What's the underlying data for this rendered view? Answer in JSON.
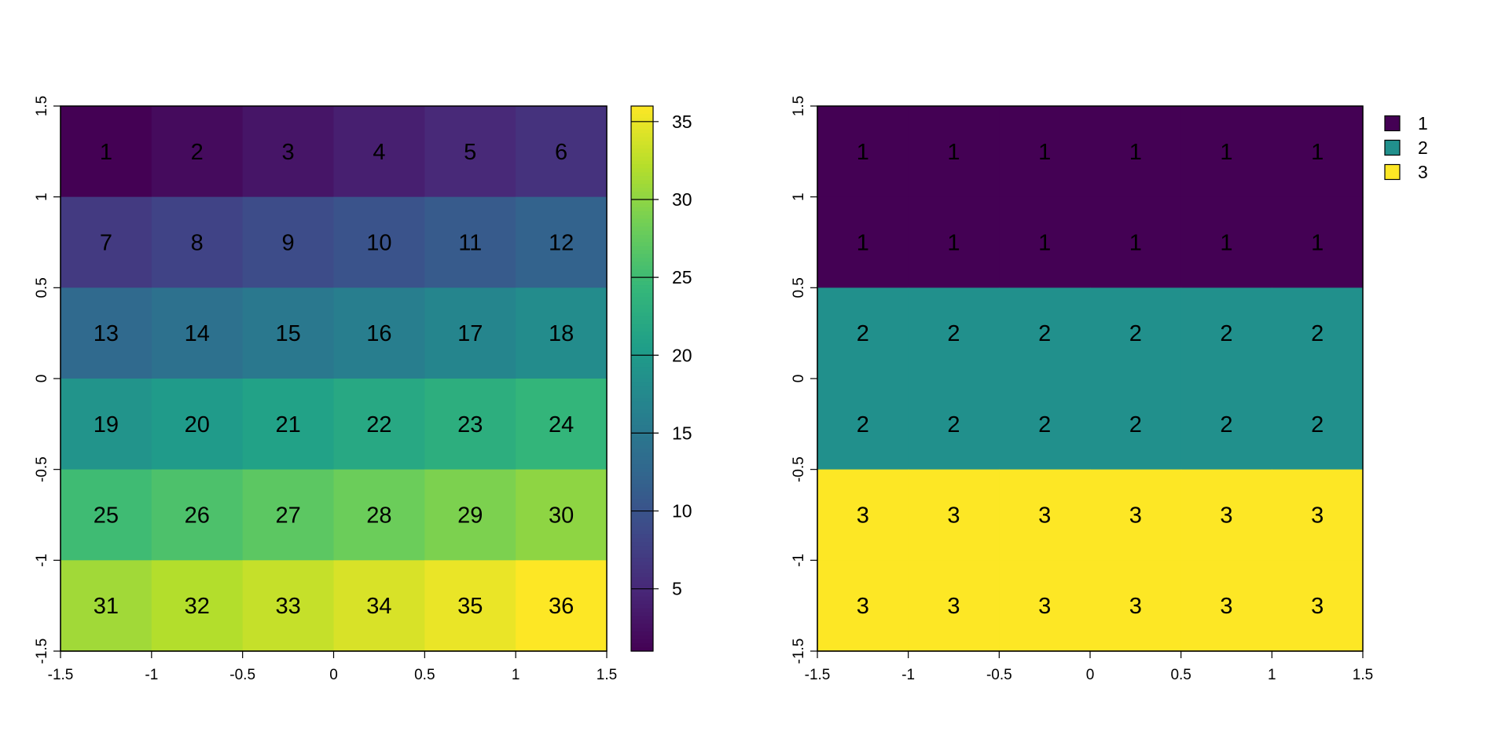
{
  "chart_data": [
    {
      "type": "heatmap",
      "xlim": [
        -1.5,
        1.5
      ],
      "ylim": [
        -1.5,
        1.5
      ],
      "x_ticks": [
        "-1.5",
        "-1",
        "-0.5",
        "0",
        "0.5",
        "1",
        "1.5"
      ],
      "y_ticks": [
        "-1.5",
        "-1",
        "-0.5",
        "0",
        "0.5",
        "1",
        "1.5"
      ],
      "nrows": 6,
      "ncols": 6,
      "cells": [
        [
          1,
          2,
          3,
          4,
          5,
          6
        ],
        [
          7,
          8,
          9,
          10,
          11,
          12
        ],
        [
          13,
          14,
          15,
          16,
          17,
          18
        ],
        [
          19,
          20,
          21,
          22,
          23,
          24
        ],
        [
          25,
          26,
          27,
          28,
          29,
          30
        ],
        [
          31,
          32,
          33,
          34,
          35,
          36
        ]
      ],
      "value_range": [
        1,
        36
      ],
      "colorscale": "viridis",
      "colorbar": {
        "ticks": [
          "5",
          "10",
          "15",
          "20",
          "25",
          "30",
          "35"
        ]
      }
    },
    {
      "type": "heatmap",
      "xlim": [
        -1.5,
        1.5
      ],
      "ylim": [
        -1.5,
        1.5
      ],
      "x_ticks": [
        "-1.5",
        "-1",
        "-0.5",
        "0",
        "0.5",
        "1",
        "1.5"
      ],
      "y_ticks": [
        "-1.5",
        "-1",
        "-0.5",
        "0",
        "0.5",
        "1",
        "1.5"
      ],
      "nrows": 6,
      "ncols": 6,
      "cells": [
        [
          1,
          1,
          1,
          1,
          1,
          1
        ],
        [
          1,
          1,
          1,
          1,
          1,
          1
        ],
        [
          2,
          2,
          2,
          2,
          2,
          2
        ],
        [
          2,
          2,
          2,
          2,
          2,
          2
        ],
        [
          3,
          3,
          3,
          3,
          3,
          3
        ],
        [
          3,
          3,
          3,
          3,
          3,
          3
        ]
      ],
      "legend": {
        "position": "top-right",
        "entries": [
          {
            "label": "1",
            "color": "#440154"
          },
          {
            "label": "2",
            "color": "#21908C"
          },
          {
            "label": "3",
            "color": "#FDE725"
          }
        ]
      }
    }
  ]
}
